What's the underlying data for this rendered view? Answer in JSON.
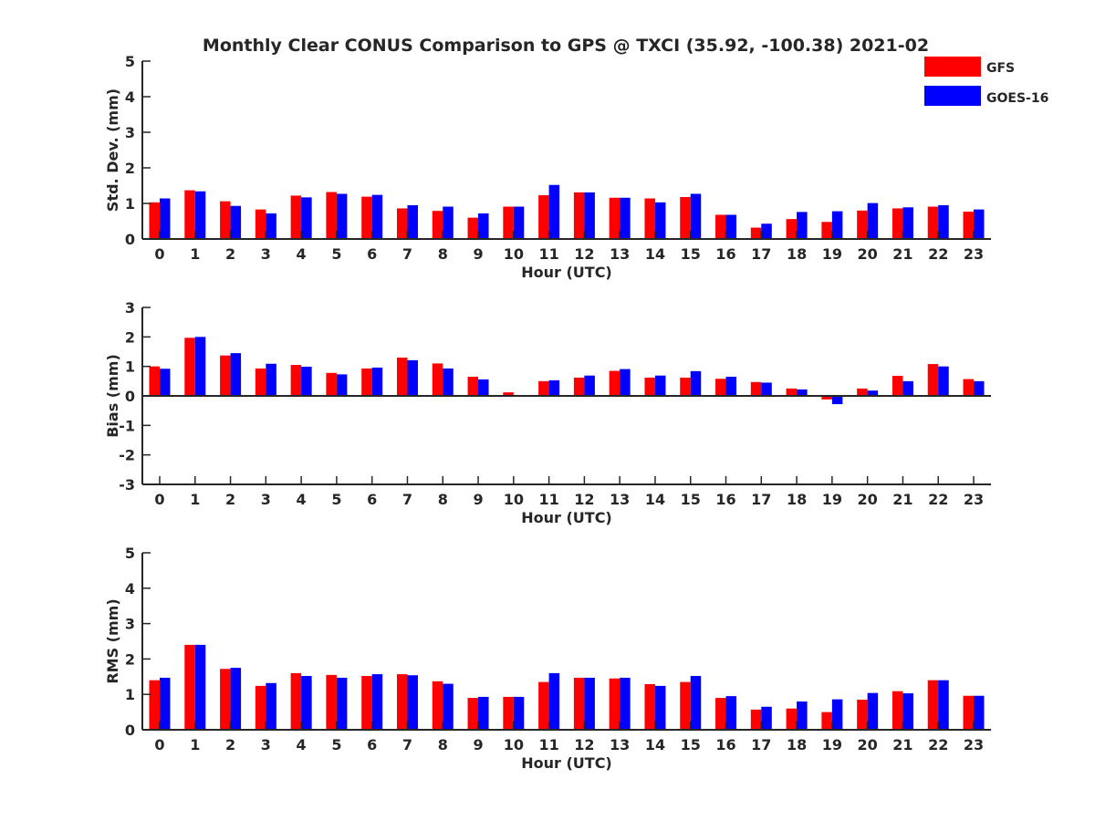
{
  "title": "Monthly Clear CONUS Comparison to GPS @ TXCI (35.92, -100.38) 2021-02",
  "colors": {
    "gfs": "#ff0000",
    "goes16": "#0000ff",
    "axis": "#262626"
  },
  "legend": {
    "placement": "top-right",
    "items": [
      "GFS",
      "GOES-16"
    ]
  },
  "chart_data": [
    {
      "type": "bar",
      "title": "Monthly Clear CONUS Comparison to GPS @ TXCI (35.92, -100.38) 2021-02",
      "xlabel": "Hour (UTC)",
      "ylabel": "Std. Dev. (mm)",
      "ylim": [
        0,
        5
      ],
      "yticks": [
        "0",
        "1",
        "2",
        "3",
        "4",
        "5"
      ],
      "categories": [
        "0",
        "1",
        "2",
        "3",
        "4",
        "5",
        "6",
        "7",
        "8",
        "9",
        "10",
        "11",
        "12",
        "13",
        "14",
        "15",
        "16",
        "17",
        "18",
        "19",
        "20",
        "21",
        "22",
        "23"
      ],
      "series": [
        {
          "name": "GFS",
          "values": [
            1.03,
            1.37,
            1.06,
            0.83,
            1.22,
            1.32,
            1.19,
            0.86,
            0.79,
            0.6,
            0.91,
            1.23,
            1.31,
            1.16,
            1.14,
            1.18,
            0.68,
            0.32,
            0.56,
            0.48,
            0.8,
            0.86,
            0.91,
            0.77
          ]
        },
        {
          "name": "GOES-16",
          "values": [
            1.14,
            1.34,
            0.93,
            0.72,
            1.17,
            1.27,
            1.24,
            0.95,
            0.91,
            0.72,
            0.91,
            1.52,
            1.31,
            1.16,
            1.03,
            1.27,
            0.68,
            0.43,
            0.76,
            0.78,
            1.01,
            0.89,
            0.95,
            0.83
          ]
        }
      ],
      "grid": false
    },
    {
      "type": "bar",
      "xlabel": "Hour (UTC)",
      "ylabel": "Bias (mm)",
      "ylim": [
        -3,
        3
      ],
      "yticks": [
        "-3",
        "-2",
        "-1",
        "0",
        "1",
        "2",
        "3"
      ],
      "categories": [
        "0",
        "1",
        "2",
        "3",
        "4",
        "5",
        "6",
        "7",
        "8",
        "9",
        "10",
        "11",
        "12",
        "13",
        "14",
        "15",
        "16",
        "17",
        "18",
        "19",
        "20",
        "21",
        "22",
        "23"
      ],
      "series": [
        {
          "name": "GFS",
          "values": [
            1.0,
            1.97,
            1.37,
            0.93,
            1.05,
            0.78,
            0.93,
            1.3,
            1.1,
            0.65,
            0.12,
            0.5,
            0.62,
            0.85,
            0.62,
            0.62,
            0.58,
            0.47,
            0.25,
            -0.12,
            0.25,
            0.68,
            1.08,
            0.57
          ]
        },
        {
          "name": "GOES-16",
          "values": [
            0.92,
            2.0,
            1.45,
            1.09,
            0.99,
            0.73,
            0.96,
            1.21,
            0.93,
            0.56,
            0.0,
            0.53,
            0.69,
            0.91,
            0.69,
            0.84,
            0.65,
            0.45,
            0.22,
            -0.28,
            0.18,
            0.5,
            1.0,
            0.5
          ]
        }
      ],
      "grid": false
    },
    {
      "type": "bar",
      "xlabel": "Hour (UTC)",
      "ylabel": "RMS (mm)",
      "ylim": [
        0,
        5
      ],
      "yticks": [
        "0",
        "1",
        "2",
        "3",
        "4",
        "5"
      ],
      "categories": [
        "0",
        "1",
        "2",
        "3",
        "4",
        "5",
        "6",
        "7",
        "8",
        "9",
        "10",
        "11",
        "12",
        "13",
        "14",
        "15",
        "16",
        "17",
        "18",
        "19",
        "20",
        "21",
        "22",
        "23"
      ],
      "series": [
        {
          "name": "GFS",
          "values": [
            1.4,
            2.4,
            1.72,
            1.24,
            1.6,
            1.55,
            1.52,
            1.57,
            1.37,
            0.9,
            0.93,
            1.35,
            1.47,
            1.45,
            1.29,
            1.35,
            0.9,
            0.57,
            0.6,
            0.5,
            0.85,
            1.09,
            1.4,
            0.96
          ]
        },
        {
          "name": "GOES-16",
          "values": [
            1.47,
            2.4,
            1.75,
            1.32,
            1.52,
            1.47,
            1.57,
            1.54,
            1.3,
            0.93,
            0.93,
            1.6,
            1.47,
            1.47,
            1.24,
            1.52,
            0.95,
            0.65,
            0.8,
            0.86,
            1.04,
            1.03,
            1.4,
            0.96
          ]
        }
      ],
      "grid": false
    }
  ]
}
